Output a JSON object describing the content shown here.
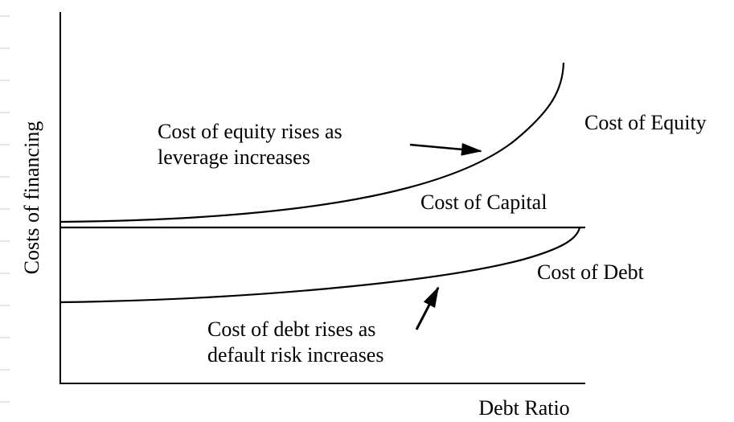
{
  "axes": {
    "y_label": "Costs of financing",
    "x_label": "Debt Ratio"
  },
  "curves": [
    {
      "label": "Cost of Equity"
    },
    {
      "label": "Cost of Capital"
    },
    {
      "label": "Cost of Debt"
    }
  ],
  "annotations": [
    {
      "lines": [
        "Cost of equity rises as",
        "leverage increases"
      ]
    },
    {
      "lines": [
        "Cost of debt rises as",
        "default risk increases"
      ]
    }
  ]
}
